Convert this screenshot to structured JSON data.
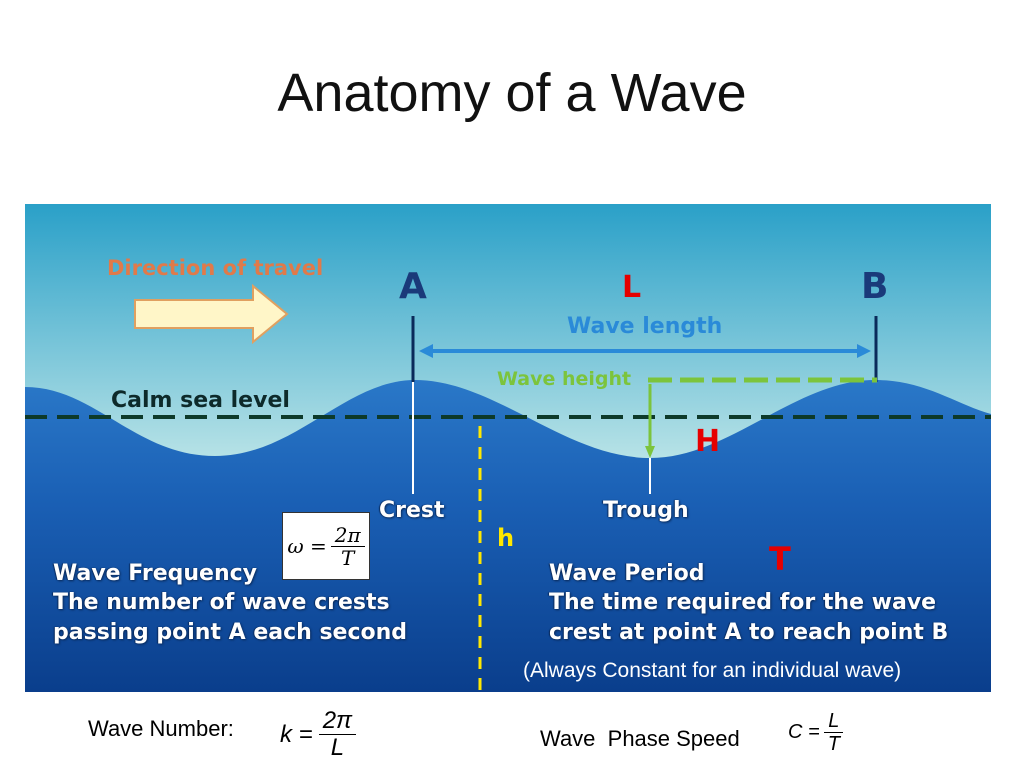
{
  "title": "Anatomy of a Wave",
  "diagram": {
    "direction_of_travel": "Direction of travel",
    "point_a": "A",
    "point_b": "B",
    "L": "L",
    "wave_length": "Wave length",
    "wave_height": "Wave height",
    "calm_sea_level": "Calm sea level",
    "H": "H",
    "h": "h",
    "T": "T",
    "crest": "Crest",
    "trough": "Trough",
    "frequency_formula": {
      "lhs": "ω =",
      "num": "2π",
      "den": "T"
    },
    "wave_frequency": {
      "title": "Wave Frequency",
      "line1": "The number of wave crests",
      "line2": "passing point A each second"
    },
    "wave_period": {
      "title": "Wave Period",
      "line1": "The time required for the wave",
      "line2": "crest at point A to reach point B"
    },
    "always_constant": "(Always Constant for an individual wave)"
  },
  "bottom": {
    "wave_number_label": "Wave Number:",
    "wave_number_formula": {
      "lhs": "k =",
      "num": "2π",
      "den": "L"
    },
    "phase_speed_label": "Wave  Phase Speed",
    "phase_speed_formula": {
      "lhs": "C =",
      "num": "L",
      "den": "T"
    }
  },
  "colors": {
    "sky_top": "#2aa0c8",
    "sky_bottom": "#fffbe0",
    "sea_top": "#1e6bc0",
    "sea_bottom": "#0a3e8c",
    "arrow_fill": "#fff6c8",
    "arrow_stroke": "#e0a060",
    "direction_text": "#e07a4a"
  }
}
